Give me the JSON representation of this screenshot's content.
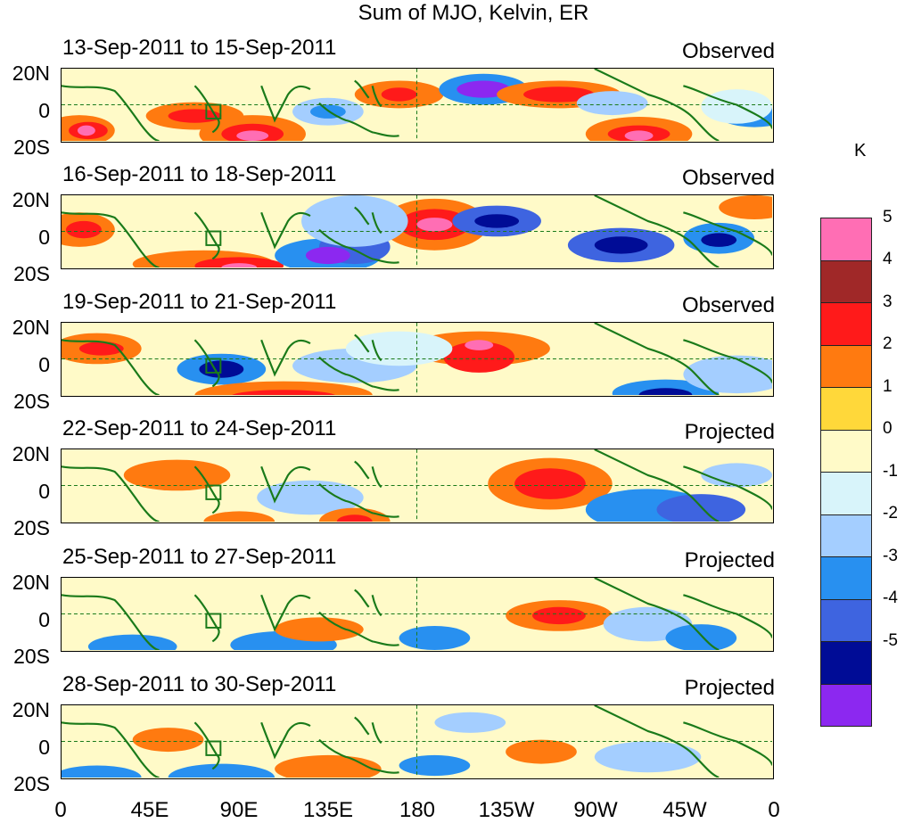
{
  "title": "Sum of MJO, Kelvin, ER",
  "unit": "K",
  "lat_labels": [
    "20N",
    "0",
    "20S"
  ],
  "lon_labels": [
    "0",
    "45E",
    "90E",
    "135E",
    "180",
    "135W",
    "90W",
    "45W",
    "0"
  ],
  "panels": [
    {
      "date": "13-Sep-2011 to 15-Sep-2011",
      "status": "Observed"
    },
    {
      "date": "16-Sep-2011 to 18-Sep-2011",
      "status": "Observed"
    },
    {
      "date": "19-Sep-2011 to 21-Sep-2011",
      "status": "Observed"
    },
    {
      "date": "22-Sep-2011 to 24-Sep-2011",
      "status": "Projected"
    },
    {
      "date": "25-Sep-2011 to 27-Sep-2011",
      "status": "Projected"
    },
    {
      "date": "28-Sep-2011 to 30-Sep-2011",
      "status": "Projected"
    }
  ],
  "colorbar": {
    "labels": [
      "5",
      "4",
      "3",
      "2",
      "1",
      "0",
      "-1",
      "-2",
      "-3",
      "-4",
      "-5"
    ],
    "colors": [
      "#ff6eb4",
      "#a02828",
      "#ff1a1a",
      "#ff7a10",
      "#ffd83a",
      "#fffac8",
      "#d8f4fa",
      "#a4ceff",
      "#2890f0",
      "#3e64e0",
      "#000c96",
      "#8c28f0"
    ]
  }
}
